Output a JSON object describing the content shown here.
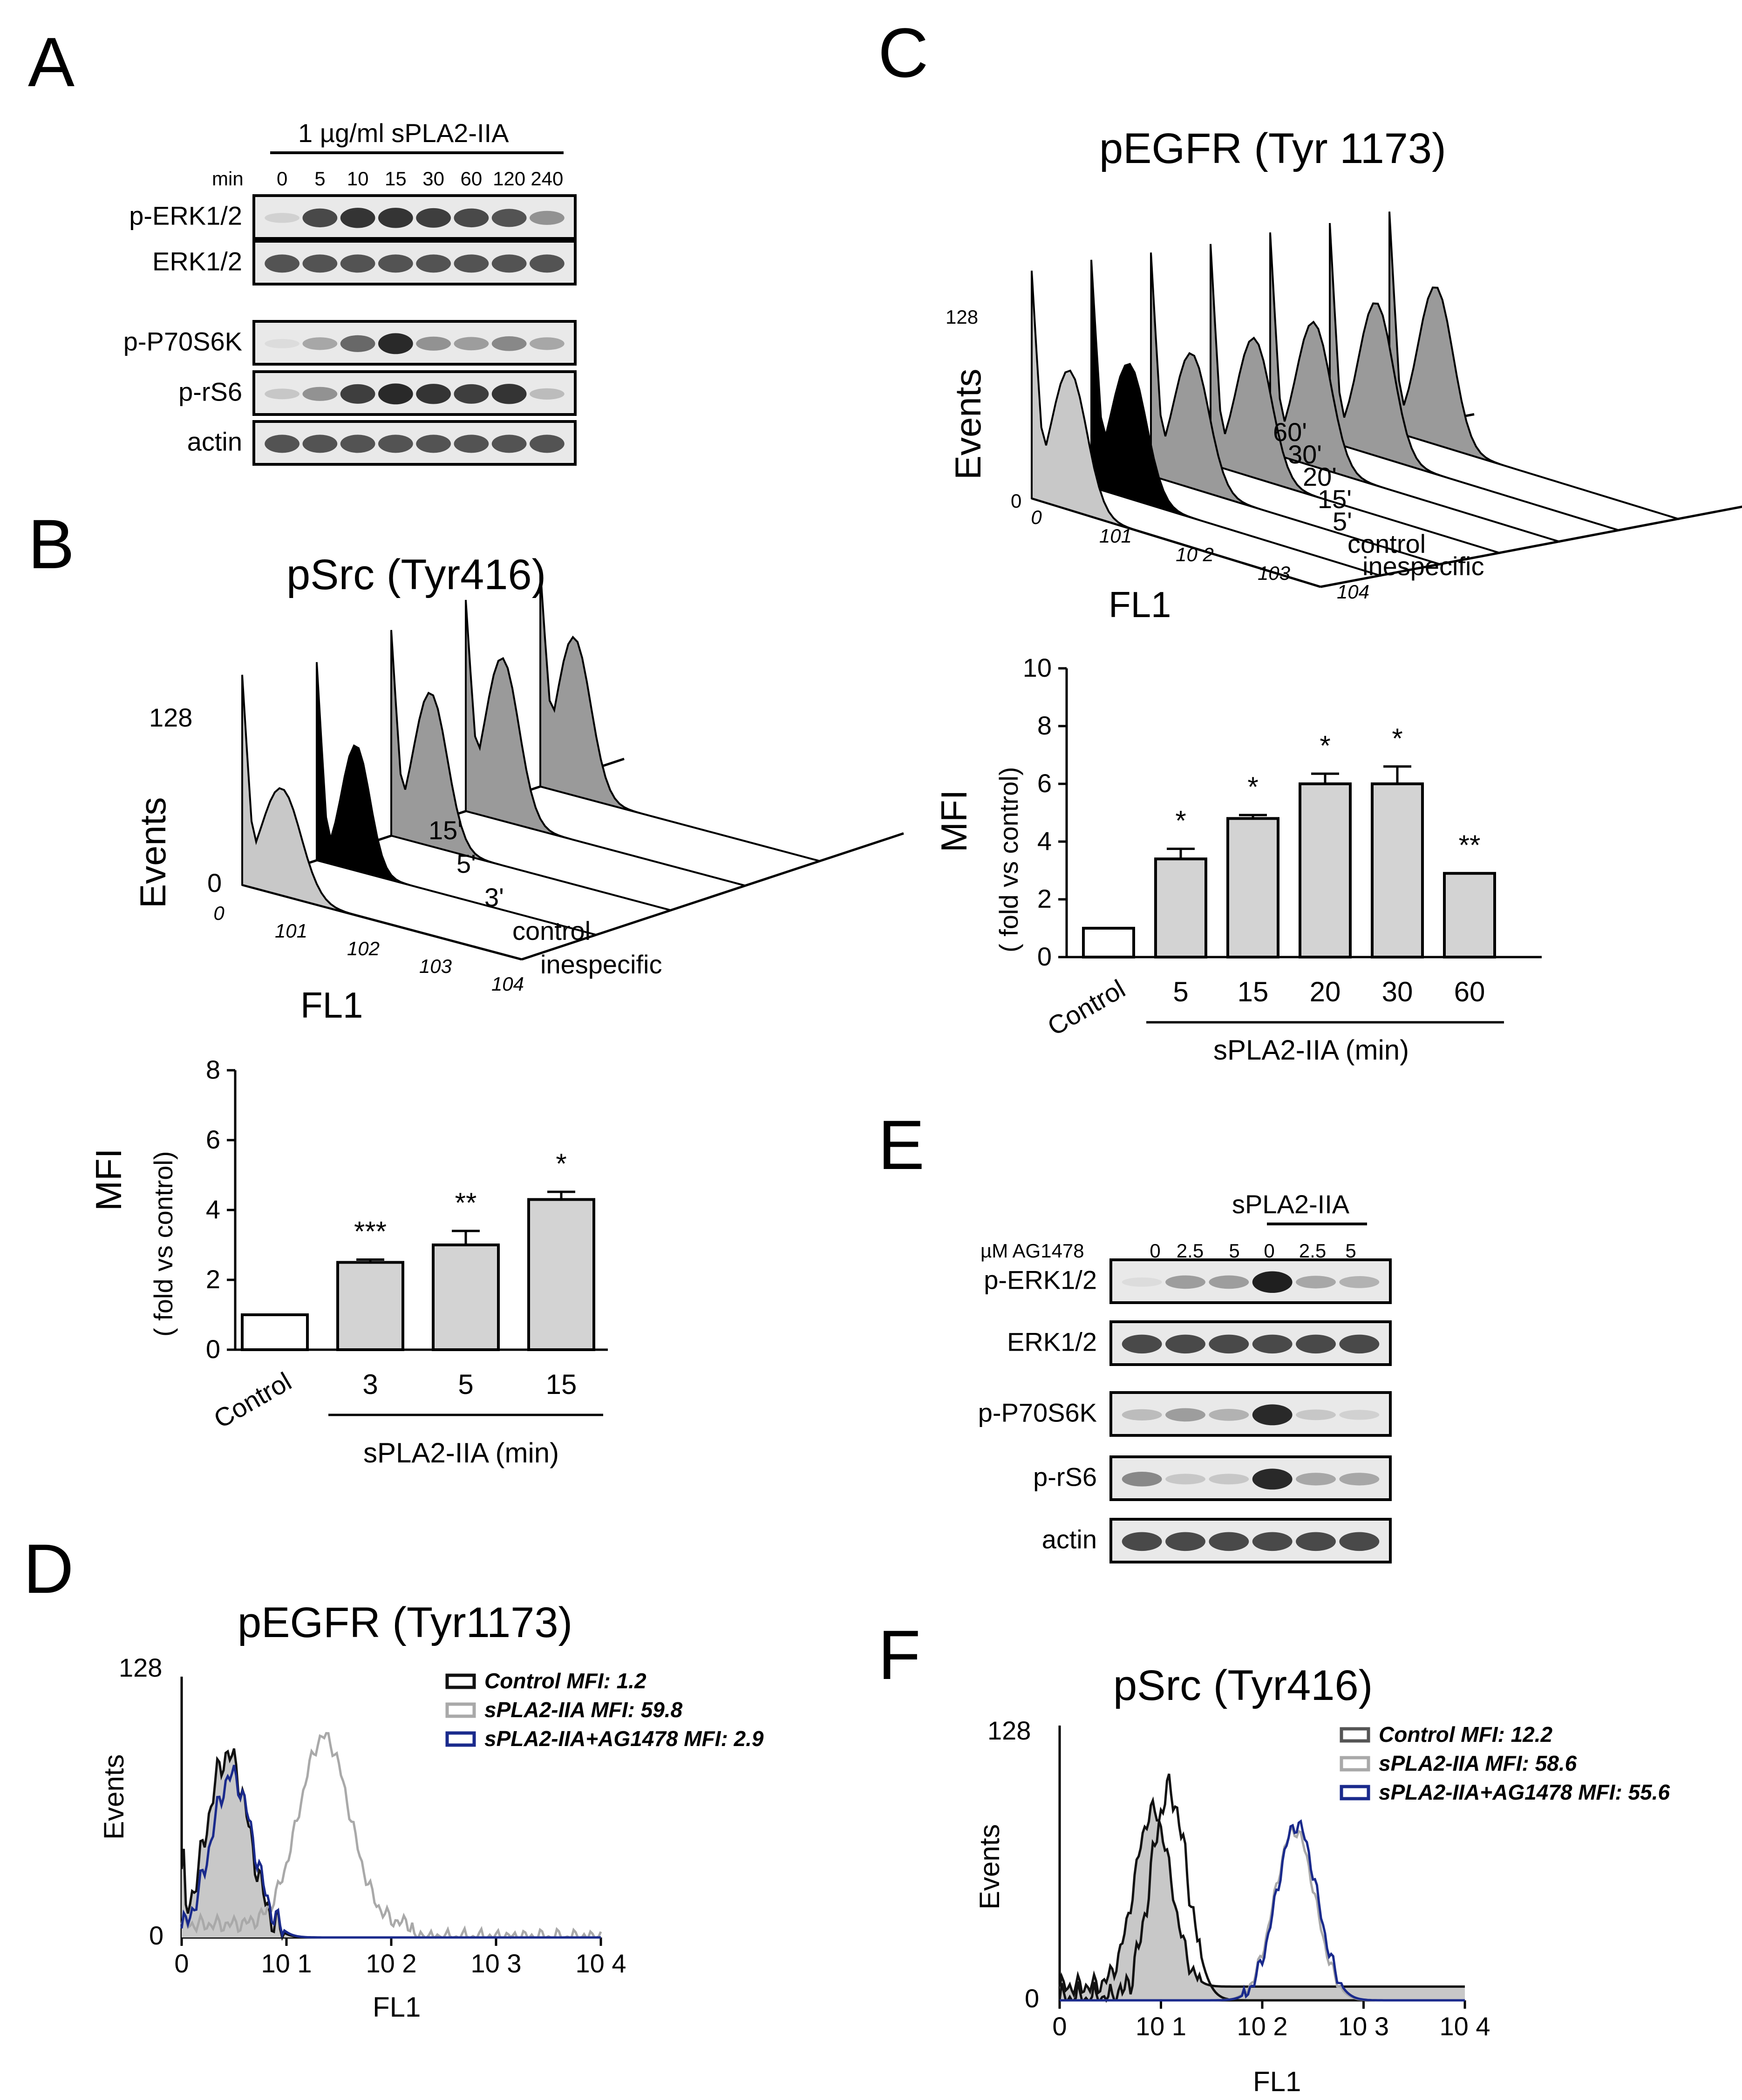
{
  "panels": {
    "A": {
      "letter": "A",
      "treatment": "1 µg/ml sPLA2-IIA",
      "time_label": "min",
      "times": [
        "0",
        "5",
        "10",
        "15",
        "30",
        "60",
        "120",
        "240"
      ],
      "rows": [
        "p-ERK1/2",
        "ERK1/2",
        "p-P70S6K",
        "p-rS6",
        "actin"
      ],
      "band_intensity": [
        [
          0.1,
          0.75,
          0.85,
          0.85,
          0.8,
          0.75,
          0.7,
          0.4
        ],
        [
          0.7,
          0.7,
          0.7,
          0.7,
          0.7,
          0.7,
          0.7,
          0.7
        ],
        [
          0.05,
          0.3,
          0.6,
          0.9,
          0.4,
          0.35,
          0.45,
          0.3
        ],
        [
          0.15,
          0.4,
          0.8,
          0.9,
          0.85,
          0.8,
          0.85,
          0.2
        ],
        [
          0.7,
          0.7,
          0.7,
          0.7,
          0.7,
          0.7,
          0.7,
          0.7
        ]
      ]
    },
    "B": {
      "letter": "B",
      "title": "pSrc (Tyr416)",
      "y_label": "Events",
      "y_max": "128",
      "y_zero": "0",
      "x_label": "FL1",
      "x_ticks": [
        "0",
        "101",
        "102",
        "103",
        "104"
      ],
      "z_labels": [
        "15'",
        "5'",
        "3'",
        "control",
        "inespecific"
      ]
    },
    "B_bar": {
      "ylabel": "MFI",
      "ylabel2": "( fold vs control)",
      "group_label": "sPLA2-IIA (min)"
    },
    "C": {
      "letter": "C",
      "title": "pEGFR (Tyr 1173)",
      "y_label": "Events",
      "y_max": "128",
      "y_zero": "0",
      "x_label": "FL1",
      "x_ticks": [
        "0",
        "101",
        "10 2",
        "103",
        "104"
      ],
      "z_labels": [
        "60'",
        "30'",
        "20'",
        "15'",
        "5'",
        "control",
        "inespecific"
      ]
    },
    "C_bar": {
      "ylabel": "MFI",
      "ylabel2": "( fold vs control)",
      "group_label": "sPLA2-IIA (min)"
    },
    "D": {
      "letter": "D",
      "title": "pEGFR (Tyr1173)",
      "y_label": "Events",
      "y_max": "128",
      "y_zero": "0",
      "x_label": "FL1",
      "x_ticks": [
        "0",
        "10 1",
        "10 2",
        "10 3",
        "10 4"
      ],
      "legend": [
        "Control MFI: 1.2",
        "sPLA2-IIA MFI: 59.8",
        "sPLA2-IIA+AG1478 MFI: 2.9"
      ]
    },
    "E": {
      "letter": "E",
      "treatment": "sPLA2-IIA",
      "inhibitor_label": "µM AG1478",
      "doses": [
        "0",
        "2.5",
        "5",
        "0",
        "2.5",
        "5"
      ],
      "rows": [
        "p-ERK1/2",
        "ERK1/2",
        "p-P70S6K",
        "p-rS6",
        "actin"
      ],
      "band_intensity": [
        [
          0.05,
          0.35,
          0.35,
          0.95,
          0.3,
          0.25
        ],
        [
          0.75,
          0.75,
          0.75,
          0.75,
          0.75,
          0.75
        ],
        [
          0.2,
          0.35,
          0.25,
          0.9,
          0.15,
          0.1
        ],
        [
          0.45,
          0.15,
          0.15,
          0.9,
          0.3,
          0.3
        ],
        [
          0.75,
          0.75,
          0.75,
          0.75,
          0.75,
          0.75
        ]
      ]
    },
    "F": {
      "letter": "F",
      "title": "pSrc (Tyr416)",
      "y_label": "Events",
      "y_max": "128",
      "y_zero": "0",
      "x_label": "FL1",
      "x_ticks": [
        "0",
        "10 1",
        "10 2",
        "10 3",
        "10 4"
      ],
      "legend": [
        "Control MFI: 12.2",
        "sPLA2-IIA MFI: 58.6",
        "sPLA2-IIA+AG1478 MFI: 55.6"
      ]
    }
  },
  "colors": {
    "control": "#111111",
    "spla2": "#a9a9a9",
    "inhibitor": "#1a2a8c",
    "fill_light": "#c8c8c8",
    "fill_dark": "#9a9a9a"
  },
  "chart_data": [
    {
      "type": "bar",
      "panel": "B",
      "ylabel": "MFI ( fold vs control)",
      "xlabel": "sPLA2-IIA (min)",
      "categories": [
        "Control",
        "3",
        "5",
        "15"
      ],
      "values": [
        1.0,
        2.5,
        3.0,
        4.3
      ],
      "errors": [
        0,
        0.08,
        0.4,
        0.22
      ],
      "significance": [
        "",
        "***",
        "**",
        "*"
      ],
      "ylim": [
        0,
        8
      ],
      "yticks": [
        0,
        2,
        4,
        6,
        8
      ]
    },
    {
      "type": "bar",
      "panel": "C",
      "ylabel": "MFI ( fold vs control)",
      "xlabel": "sPLA2-IIA (min)",
      "categories": [
        "Control",
        "5",
        "15",
        "20",
        "30",
        "60"
      ],
      "values": [
        1.0,
        3.4,
        4.8,
        6.0,
        6.0,
        2.9
      ],
      "errors": [
        0,
        0.35,
        0.12,
        0.35,
        0.6,
        0
      ],
      "significance": [
        "",
        "*",
        "*",
        "*",
        "*",
        "**"
      ],
      "ylim": [
        0,
        10
      ],
      "yticks": [
        0,
        2,
        4,
        6,
        8,
        10
      ]
    }
  ]
}
